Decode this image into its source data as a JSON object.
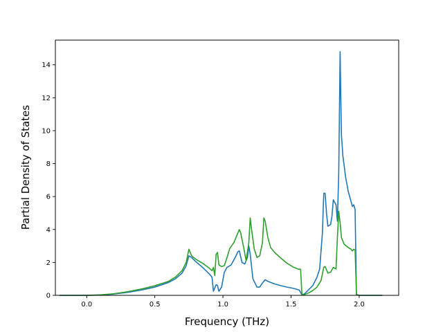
{
  "chart_data": {
    "type": "line",
    "title": "",
    "xlabel": "Frequency (THz)",
    "ylabel": "Partial Density of States",
    "xlim": [
      -0.23,
      2.29
    ],
    "ylim": [
      0,
      15.5
    ],
    "xticks": [
      0.0,
      0.5,
      1.0,
      1.5,
      2.0
    ],
    "xtick_labels": [
      "0.0",
      "0.5",
      "1.0",
      "1.5",
      "2.0"
    ],
    "yticks": [
      0,
      2,
      4,
      6,
      8,
      10,
      12,
      14
    ],
    "ytick_labels": [
      "0",
      "2",
      "4",
      "6",
      "8",
      "10",
      "12",
      "14"
    ],
    "grid": false,
    "legend": "none",
    "series": [
      {
        "color": "#1f77b4",
        "points": [
          [
            -0.2,
            0
          ],
          [
            0.0,
            0
          ],
          [
            0.1,
            0.02
          ],
          [
            0.2,
            0.08
          ],
          [
            0.3,
            0.18
          ],
          [
            0.4,
            0.32
          ],
          [
            0.5,
            0.5
          ],
          [
            0.6,
            0.78
          ],
          [
            0.65,
            1.0
          ],
          [
            0.7,
            1.35
          ],
          [
            0.73,
            1.8
          ],
          [
            0.75,
            2.4
          ],
          [
            0.77,
            2.3
          ],
          [
            0.8,
            2.05
          ],
          [
            0.85,
            1.7
          ],
          [
            0.9,
            1.3
          ],
          [
            0.92,
            1.1
          ],
          [
            0.93,
            0.25
          ],
          [
            0.95,
            0.65
          ],
          [
            0.96,
            0.6
          ],
          [
            0.97,
            0.25
          ],
          [
            0.99,
            0.5
          ],
          [
            1.01,
            1.4
          ],
          [
            1.03,
            1.7
          ],
          [
            1.06,
            1.85
          ],
          [
            1.09,
            2.3
          ],
          [
            1.11,
            2.65
          ],
          [
            1.12,
            2.7
          ],
          [
            1.14,
            2.0
          ],
          [
            1.16,
            1.9
          ],
          [
            1.18,
            2.3
          ],
          [
            1.19,
            3.0
          ],
          [
            1.2,
            2.5
          ],
          [
            1.22,
            1.0
          ],
          [
            1.25,
            0.5
          ],
          [
            1.27,
            0.5
          ],
          [
            1.29,
            0.75
          ],
          [
            1.31,
            0.95
          ],
          [
            1.33,
            0.85
          ],
          [
            1.37,
            0.72
          ],
          [
            1.42,
            0.6
          ],
          [
            1.47,
            0.5
          ],
          [
            1.52,
            0.42
          ],
          [
            1.56,
            0.32
          ],
          [
            1.58,
            0.02
          ],
          [
            1.6,
            0.1
          ],
          [
            1.63,
            0.35
          ],
          [
            1.66,
            0.6
          ],
          [
            1.69,
            1.1
          ],
          [
            1.71,
            1.6
          ],
          [
            1.73,
            3.8
          ],
          [
            1.74,
            6.2
          ],
          [
            1.75,
            6.2
          ],
          [
            1.76,
            5.0
          ],
          [
            1.77,
            4.2
          ],
          [
            1.79,
            4.3
          ],
          [
            1.8,
            4.8
          ],
          [
            1.81,
            5.8
          ],
          [
            1.83,
            5.5
          ],
          [
            1.84,
            4.5
          ],
          [
            1.85,
            7.5
          ],
          [
            1.86,
            14.8
          ],
          [
            1.865,
            12.0
          ],
          [
            1.87,
            9.7
          ],
          [
            1.88,
            8.5
          ],
          [
            1.9,
            7.2
          ],
          [
            1.92,
            6.3
          ],
          [
            1.94,
            5.7
          ],
          [
            1.95,
            5.4
          ],
          [
            1.96,
            5.5
          ],
          [
            1.97,
            5.2
          ],
          [
            1.98,
            0.05
          ],
          [
            2.0,
            0
          ],
          [
            2.17,
            0
          ]
        ]
      },
      {
        "color": "#2ca02c",
        "points": [
          [
            -0.2,
            0
          ],
          [
            0.0,
            0
          ],
          [
            0.1,
            0.03
          ],
          [
            0.2,
            0.1
          ],
          [
            0.3,
            0.22
          ],
          [
            0.4,
            0.38
          ],
          [
            0.5,
            0.58
          ],
          [
            0.6,
            0.85
          ],
          [
            0.65,
            1.1
          ],
          [
            0.7,
            1.5
          ],
          [
            0.73,
            2.0
          ],
          [
            0.75,
            2.8
          ],
          [
            0.77,
            2.4
          ],
          [
            0.8,
            2.2
          ],
          [
            0.85,
            1.95
          ],
          [
            0.9,
            1.65
          ],
          [
            0.92,
            1.5
          ],
          [
            0.93,
            1.7
          ],
          [
            0.94,
            1.2
          ],
          [
            0.95,
            2.5
          ],
          [
            0.96,
            2.6
          ],
          [
            0.97,
            1.85
          ],
          [
            0.99,
            1.75
          ],
          [
            1.01,
            1.8
          ],
          [
            1.03,
            2.3
          ],
          [
            1.05,
            2.85
          ],
          [
            1.08,
            3.2
          ],
          [
            1.11,
            3.8
          ],
          [
            1.12,
            4.0
          ],
          [
            1.13,
            3.8
          ],
          [
            1.15,
            3.0
          ],
          [
            1.17,
            2.1
          ],
          [
            1.19,
            3.2
          ],
          [
            1.2,
            4.7
          ],
          [
            1.21,
            4.0
          ],
          [
            1.23,
            2.8
          ],
          [
            1.25,
            2.3
          ],
          [
            1.27,
            2.4
          ],
          [
            1.29,
            3.2
          ],
          [
            1.3,
            4.7
          ],
          [
            1.31,
            4.5
          ],
          [
            1.33,
            3.5
          ],
          [
            1.35,
            2.9
          ],
          [
            1.38,
            2.6
          ],
          [
            1.42,
            2.3
          ],
          [
            1.47,
            1.95
          ],
          [
            1.52,
            1.7
          ],
          [
            1.55,
            1.6
          ],
          [
            1.57,
            1.58
          ],
          [
            1.58,
            0.02
          ],
          [
            1.6,
            0.05
          ],
          [
            1.63,
            0.15
          ],
          [
            1.66,
            0.3
          ],
          [
            1.69,
            0.5
          ],
          [
            1.72,
            0.9
          ],
          [
            1.74,
            1.7
          ],
          [
            1.75,
            1.75
          ],
          [
            1.77,
            1.35
          ],
          [
            1.79,
            1.4
          ],
          [
            1.81,
            1.7
          ],
          [
            1.83,
            1.6
          ],
          [
            1.84,
            3.5
          ],
          [
            1.85,
            5.1
          ],
          [
            1.86,
            4.4
          ],
          [
            1.87,
            3.5
          ],
          [
            1.89,
            3.1
          ],
          [
            1.92,
            2.9
          ],
          [
            1.94,
            2.8
          ],
          [
            1.95,
            2.7
          ],
          [
            1.96,
            2.8
          ],
          [
            1.97,
            2.75
          ],
          [
            1.98,
            0.05
          ],
          [
            2.0,
            0
          ],
          [
            2.17,
            0
          ]
        ]
      }
    ]
  }
}
